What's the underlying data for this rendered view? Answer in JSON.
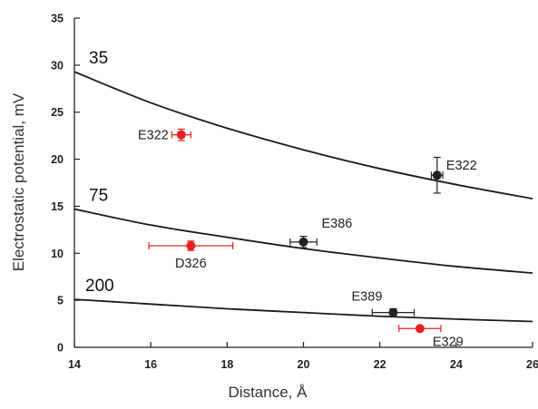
{
  "chart_data": {
    "type": "scatter",
    "xlabel": "Distance, Å",
    "ylabel": "Electrostatic potential, mV",
    "xlim": [
      14,
      26
    ],
    "ylim": [
      0,
      35
    ],
    "xticks": [
      "14",
      "16",
      "18",
      "20",
      "22",
      "24",
      "26"
    ],
    "yticks": [
      "0",
      "5",
      "10",
      "15",
      "20",
      "25",
      "30",
      "35"
    ],
    "grid": false,
    "legend": "none",
    "colors": {
      "black": "#222222",
      "red": "#e8201e",
      "curve": "#1a1a1a"
    },
    "curves": [
      {
        "label": "35",
        "points": [
          [
            14,
            29.3
          ],
          [
            16,
            26.0
          ],
          [
            18,
            23.3
          ],
          [
            20,
            21.0
          ],
          [
            22,
            19.0
          ],
          [
            24,
            17.3
          ],
          [
            26,
            15.8
          ]
        ]
      },
      {
        "label": "75",
        "points": [
          [
            14,
            14.7
          ],
          [
            16,
            13.0
          ],
          [
            18,
            11.7
          ],
          [
            20,
            10.5
          ],
          [
            22,
            9.5
          ],
          [
            24,
            8.6
          ],
          [
            26,
            7.9
          ]
        ]
      },
      {
        "label": "200",
        "points": [
          [
            14,
            5.1
          ],
          [
            16,
            4.6
          ],
          [
            18,
            4.1
          ],
          [
            20,
            3.7
          ],
          [
            22,
            3.3
          ],
          [
            24,
            3.0
          ],
          [
            26,
            2.75
          ]
        ]
      }
    ],
    "points": [
      {
        "label": "E322",
        "x": 16.8,
        "y": 22.6,
        "xerr": 0.25,
        "yerr": 0.6,
        "color": "red"
      },
      {
        "label": "E322",
        "x": 23.5,
        "y": 18.3,
        "xerr": 0.15,
        "yerr": 1.9,
        "color": "black"
      },
      {
        "label": "E386",
        "x": 20.0,
        "y": 11.2,
        "xerr": 0.35,
        "yerr": 0.6,
        "color": "black"
      },
      {
        "label": "D326",
        "x": 17.05,
        "y": 10.8,
        "xerr": 1.1,
        "yerr": 0.5,
        "color": "red"
      },
      {
        "label": "E389",
        "x": 22.35,
        "y": 3.7,
        "xerr": 0.55,
        "yerr": 0.4,
        "color": "black"
      },
      {
        "label": "E329",
        "x": 23.05,
        "y": 2.0,
        "xerr": 0.55,
        "yerr": 0.0,
        "color": "red"
      }
    ]
  }
}
